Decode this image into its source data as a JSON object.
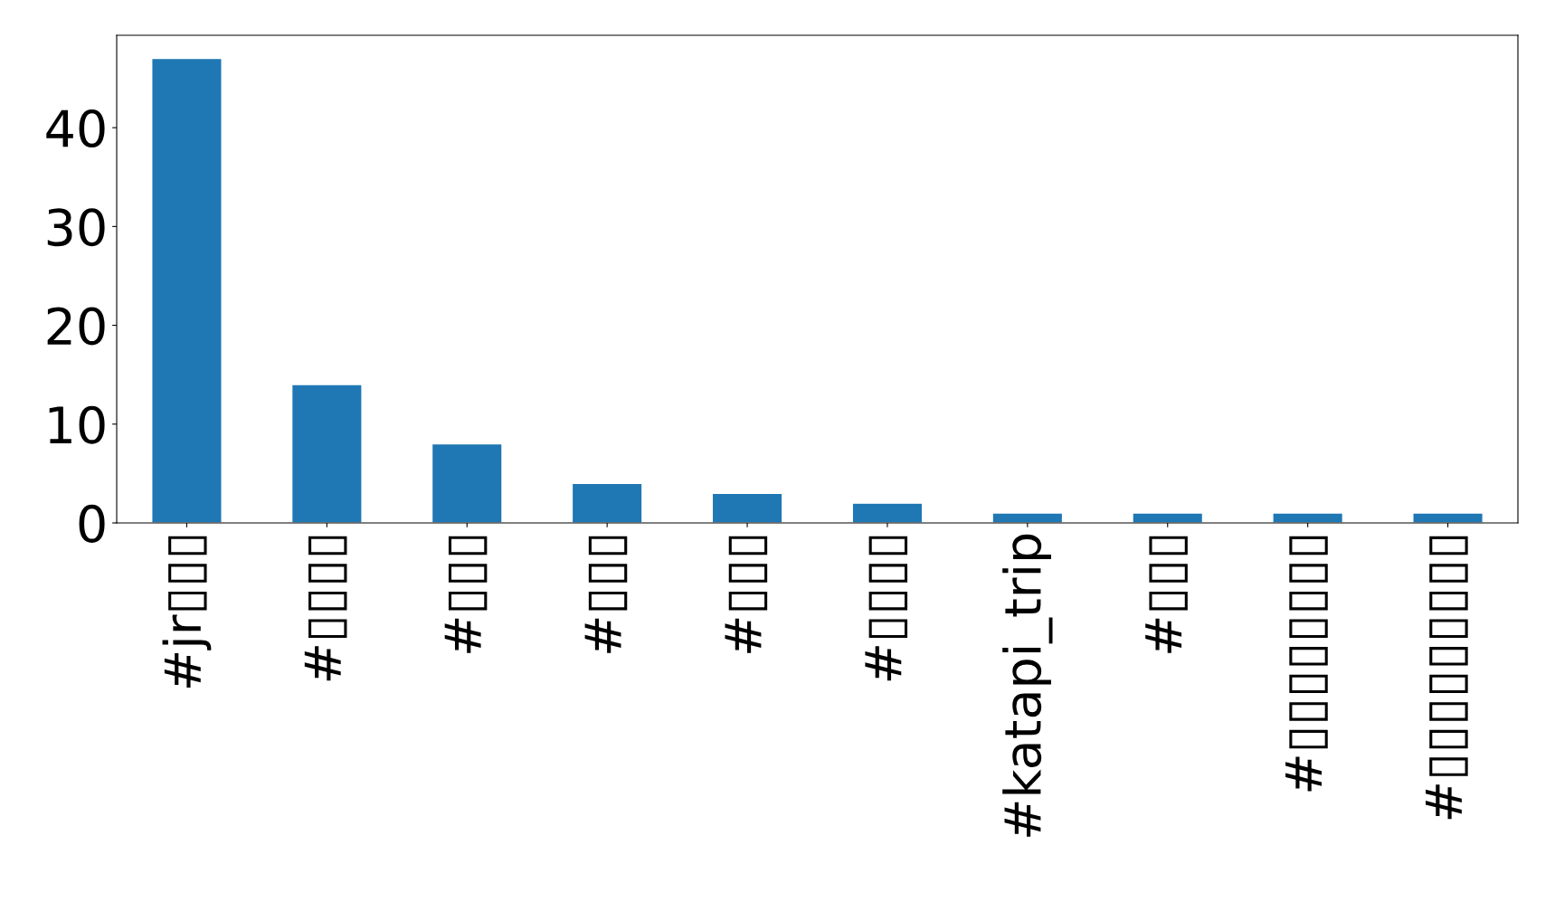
{
  "chart_data": {
    "type": "bar",
    "categories": [
      "#jr▯▯▯",
      "#▯▯▯▯",
      "#▯▯▯",
      "#▯▯▯",
      "#▯▯▯",
      "#▯▯▯▯",
      "#katapi_trip",
      "#▯▯▯",
      "#▯▯▯▯▯▯▯▯",
      "#▯▯▯▯▯▯▯▯▯"
    ],
    "values": [
      47,
      14,
      8,
      4,
      3,
      2,
      1,
      1,
      1,
      1
    ],
    "color": "#1f77b4",
    "ylim": [
      0,
      49.35
    ],
    "yticks": [
      0,
      10,
      20,
      30,
      40
    ],
    "grid": false,
    "legend": false
  }
}
